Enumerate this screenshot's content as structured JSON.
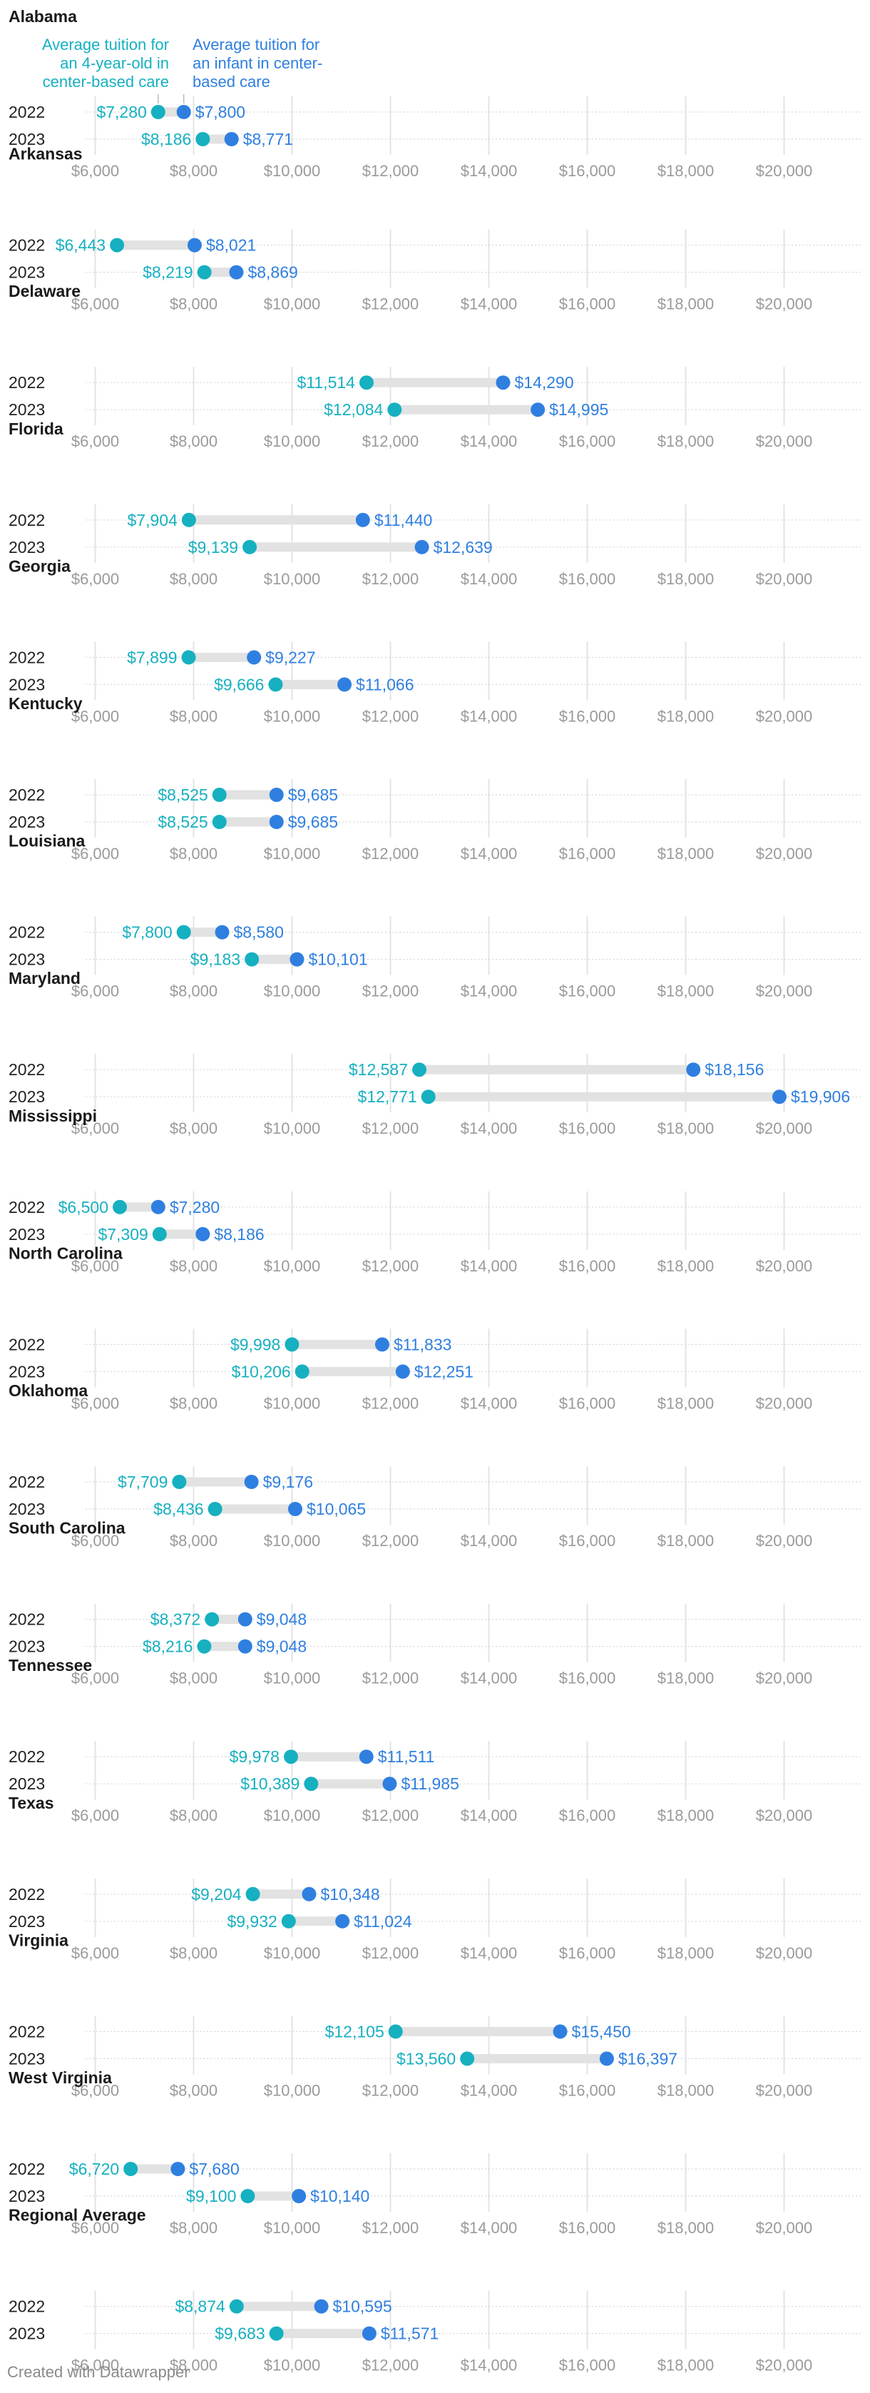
{
  "chart_data": {
    "type": "dot-range",
    "x_ticks": [
      6000,
      8000,
      10000,
      12000,
      14000,
      16000,
      18000,
      20000
    ],
    "x_tick_labels": [
      "$6,000",
      "$8,000",
      "$10,000",
      "$12,000",
      "$14,000",
      "$16,000",
      "$18,000",
      "$20,000"
    ],
    "xlim": [
      5000,
      21500
    ],
    "legend": {
      "four_year_old": "Average tuition for an 4-year-old in center-based care",
      "infant": "Average tuition for an infant in center-based care"
    },
    "colors": {
      "four_year_old": "#16b0c0",
      "infant": "#2f7fe0",
      "range_bar": "#e2e2e2",
      "grid": "#e3e3e3",
      "tick_label": "#9a9a9a"
    },
    "years": [
      "2022",
      "2023"
    ],
    "groups": [
      {
        "name": "Alabama",
        "rows": [
          {
            "year": "2022",
            "four_year_old": 7280,
            "four_year_old_label": "$7,280",
            "infant": 7800,
            "infant_label": "$7,800"
          },
          {
            "year": "2023",
            "four_year_old": 8186,
            "four_year_old_label": "$8,186",
            "infant": 8771,
            "infant_label": "$8,771"
          }
        ]
      },
      {
        "name": "Arkansas",
        "rows": [
          {
            "year": "2022",
            "four_year_old": 6443,
            "four_year_old_label": "$6,443",
            "infant": 8021,
            "infant_label": "$8,021"
          },
          {
            "year": "2023",
            "four_year_old": 8219,
            "four_year_old_label": "$8,219",
            "infant": 8869,
            "infant_label": "$8,869"
          }
        ]
      },
      {
        "name": "Delaware",
        "rows": [
          {
            "year": "2022",
            "four_year_old": 11514,
            "four_year_old_label": "$11,514",
            "infant": 14290,
            "infant_label": "$14,290"
          },
          {
            "year": "2023",
            "four_year_old": 12084,
            "four_year_old_label": "$12,084",
            "infant": 14995,
            "infant_label": "$14,995"
          }
        ]
      },
      {
        "name": "Florida",
        "rows": [
          {
            "year": "2022",
            "four_year_old": 7904,
            "four_year_old_label": "$7,904",
            "infant": 11440,
            "infant_label": "$11,440"
          },
          {
            "year": "2023",
            "four_year_old": 9139,
            "four_year_old_label": "$9,139",
            "infant": 12639,
            "infant_label": "$12,639"
          }
        ]
      },
      {
        "name": "Georgia",
        "rows": [
          {
            "year": "2022",
            "four_year_old": 7899,
            "four_year_old_label": "$7,899",
            "infant": 9227,
            "infant_label": "$9,227"
          },
          {
            "year": "2023",
            "four_year_old": 9666,
            "four_year_old_label": "$9,666",
            "infant": 11066,
            "infant_label": "$11,066"
          }
        ]
      },
      {
        "name": "Kentucky",
        "rows": [
          {
            "year": "2022",
            "four_year_old": 8525,
            "four_year_old_label": "$8,525",
            "infant": 9685,
            "infant_label": "$9,685"
          },
          {
            "year": "2023",
            "four_year_old": 8525,
            "four_year_old_label": "$8,525",
            "infant": 9685,
            "infant_label": "$9,685"
          }
        ]
      },
      {
        "name": "Louisiana",
        "rows": [
          {
            "year": "2022",
            "four_year_old": 7800,
            "four_year_old_label": "$7,800",
            "infant": 8580,
            "infant_label": "$8,580"
          },
          {
            "year": "2023",
            "four_year_old": 9183,
            "four_year_old_label": "$9,183",
            "infant": 10101,
            "infant_label": "$10,101"
          }
        ]
      },
      {
        "name": "Maryland",
        "rows": [
          {
            "year": "2022",
            "four_year_old": 12587,
            "four_year_old_label": "$12,587",
            "infant": 18156,
            "infant_label": "$18,156"
          },
          {
            "year": "2023",
            "four_year_old": 12771,
            "four_year_old_label": "$12,771",
            "infant": 19906,
            "infant_label": "$19,906"
          }
        ]
      },
      {
        "name": "Mississippi",
        "rows": [
          {
            "year": "2022",
            "four_year_old": 6500,
            "four_year_old_label": "$6,500",
            "infant": 7280,
            "infant_label": "$7,280"
          },
          {
            "year": "2023",
            "four_year_old": 7309,
            "four_year_old_label": "$7,309",
            "infant": 8186,
            "infant_label": "$8,186"
          }
        ]
      },
      {
        "name": "North Carolina",
        "rows": [
          {
            "year": "2022",
            "four_year_old": 9998,
            "four_year_old_label": "$9,998",
            "infant": 11833,
            "infant_label": "$11,833"
          },
          {
            "year": "2023",
            "four_year_old": 10206,
            "four_year_old_label": "$10,206",
            "infant": 12251,
            "infant_label": "$12,251"
          }
        ]
      },
      {
        "name": "Oklahoma",
        "rows": [
          {
            "year": "2022",
            "four_year_old": 7709,
            "four_year_old_label": "$7,709",
            "infant": 9176,
            "infant_label": "$9,176"
          },
          {
            "year": "2023",
            "four_year_old": 8436,
            "four_year_old_label": "$8,436",
            "infant": 10065,
            "infant_label": "$10,065"
          }
        ]
      },
      {
        "name": "South Carolina",
        "rows": [
          {
            "year": "2022",
            "four_year_old": 8372,
            "four_year_old_label": "$8,372",
            "infant": 9048,
            "infant_label": "$9,048"
          },
          {
            "year": "2023",
            "four_year_old": 8216,
            "four_year_old_label": "$8,216",
            "infant": 9048,
            "infant_label": "$9,048"
          }
        ]
      },
      {
        "name": "Tennessee",
        "rows": [
          {
            "year": "2022",
            "four_year_old": 9978,
            "four_year_old_label": "$9,978",
            "infant": 11511,
            "infant_label": "$11,511"
          },
          {
            "year": "2023",
            "four_year_old": 10389,
            "four_year_old_label": "$10,389",
            "infant": 11985,
            "infant_label": "$11,985"
          }
        ]
      },
      {
        "name": "Texas",
        "rows": [
          {
            "year": "2022",
            "four_year_old": 9204,
            "four_year_old_label": "$9,204",
            "infant": 10348,
            "infant_label": "$10,348"
          },
          {
            "year": "2023",
            "four_year_old": 9932,
            "four_year_old_label": "$9,932",
            "infant": 11024,
            "infant_label": "$11,024"
          }
        ]
      },
      {
        "name": "Virginia",
        "rows": [
          {
            "year": "2022",
            "four_year_old": 12105,
            "four_year_old_label": "$12,105",
            "infant": 15450,
            "infant_label": "$15,450"
          },
          {
            "year": "2023",
            "four_year_old": 13560,
            "four_year_old_label": "$13,560",
            "infant": 16397,
            "infant_label": "$16,397"
          }
        ]
      },
      {
        "name": "West Virginia",
        "rows": [
          {
            "year": "2022",
            "four_year_old": 6720,
            "four_year_old_label": "$6,720",
            "infant": 7680,
            "infant_label": "$7,680"
          },
          {
            "year": "2023",
            "four_year_old": 9100,
            "four_year_old_label": "$9,100",
            "infant": 10140,
            "infant_label": "$10,140"
          }
        ]
      },
      {
        "name": "Regional Average",
        "rows": [
          {
            "year": "2022",
            "four_year_old": 8874,
            "four_year_old_label": "$8,874",
            "infant": 10595,
            "infant_label": "$10,595"
          },
          {
            "year": "2023",
            "four_year_old": 9683,
            "four_year_old_label": "$9,683",
            "infant": 11571,
            "infant_label": "$11,571"
          }
        ]
      }
    ]
  },
  "footer": {
    "credit": "Created with Datawrapper"
  }
}
